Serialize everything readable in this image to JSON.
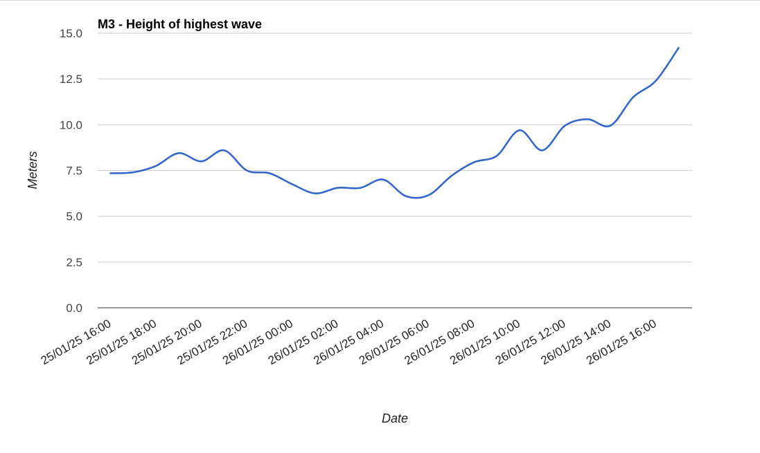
{
  "chart_data": {
    "type": "line",
    "title": "M3 - Height of highest wave",
    "xlabel": "Date",
    "ylabel": "Meters",
    "ylim": [
      0,
      15
    ],
    "yticks": [
      "0.0",
      "2.5",
      "5.0",
      "7.5",
      "10.0",
      "12.5",
      "15.0"
    ],
    "categories": [
      "25/01/25 16:00",
      "25/01/25 18:00",
      "25/01/25 20:00",
      "25/01/25 22:00",
      "26/01/25 00:00",
      "26/01/25 02:00",
      "26/01/25 04:00",
      "26/01/25 06:00",
      "26/01/25 08:00",
      "26/01/25 10:00",
      "26/01/25 12:00",
      "26/01/25 14:00",
      "26/01/25 16:00"
    ],
    "x": [
      "25/01/25 16:00",
      "25/01/25 17:00",
      "25/01/25 18:00",
      "25/01/25 19:00",
      "25/01/25 20:00",
      "25/01/25 21:00",
      "25/01/25 22:00",
      "25/01/25 23:00",
      "26/01/25 00:00",
      "26/01/25 01:00",
      "26/01/25 02:00",
      "26/01/25 03:00",
      "26/01/25 04:00",
      "26/01/25 05:00",
      "26/01/25 06:00",
      "26/01/25 07:00",
      "26/01/25 08:00",
      "26/01/25 09:00",
      "26/01/25 10:00",
      "26/01/25 11:00",
      "26/01/25 12:00",
      "26/01/25 13:00",
      "26/01/25 14:00",
      "26/01/25 15:00",
      "26/01/25 16:00",
      "26/01/25 17:00"
    ],
    "series": [
      {
        "color": "#3366cc",
        "values": [
          7.35,
          7.4,
          7.75,
          8.45,
          8.0,
          8.6,
          7.5,
          7.35,
          6.75,
          6.25,
          6.55,
          6.55,
          7.0,
          6.1,
          6.15,
          7.2,
          7.95,
          8.3,
          9.7,
          8.6,
          9.95,
          10.3,
          9.95,
          11.5,
          12.4,
          14.2
        ]
      }
    ],
    "grid": true,
    "legend": "none"
  }
}
